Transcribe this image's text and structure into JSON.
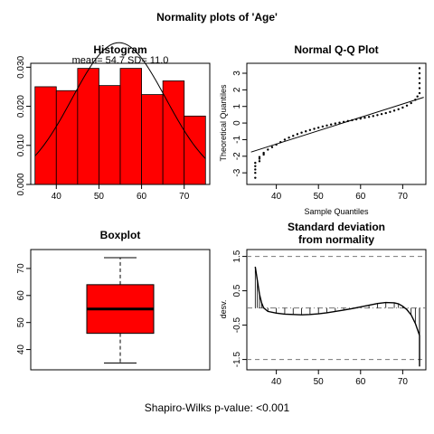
{
  "figure_title": "Normality plots of 'Age'",
  "footer": "Shapiro-Wilks p-value: <0.001",
  "colors": {
    "fill": "#ff0000",
    "edge": "#000000",
    "ref_line": "#777777"
  },
  "chart_data": [
    {
      "type": "bar",
      "title": "Histogram",
      "annotation": "mean= 54.7  SD= 11.0",
      "xlabel": "",
      "ylabel": "",
      "bin_edges": [
        35,
        40,
        45,
        50,
        55,
        60,
        65,
        70,
        75
      ],
      "values": [
        0.025,
        0.024,
        0.0297,
        0.0253,
        0.0297,
        0.023,
        0.0265,
        0.0175
      ],
      "normal_curve": {
        "mean": 54.7,
        "sd": 11.0
      },
      "xlim": [
        34,
        76
      ],
      "ylim": [
        0,
        0.031
      ],
      "x_ticks": [
        "40",
        "50",
        "60",
        "70"
      ],
      "y_ticks": [
        "0.000",
        "0.010",
        "0.020",
        "0.030"
      ]
    },
    {
      "type": "scatter",
      "title": "Normal Q-Q Plot",
      "xlabel": "Sample Quantiles",
      "ylabel": "Theoretical Quantiles",
      "points": [
        [
          35,
          -3.3
        ],
        [
          35,
          -3.0
        ],
        [
          35,
          -2.8
        ],
        [
          35,
          -2.6
        ],
        [
          35,
          -2.4
        ],
        [
          36,
          -2.3
        ],
        [
          36,
          -2.15
        ],
        [
          36,
          -2.05
        ],
        [
          37,
          -1.9
        ],
        [
          37,
          -1.8
        ],
        [
          38,
          -1.6
        ],
        [
          39,
          -1.45
        ],
        [
          40,
          -1.3
        ],
        [
          41,
          -1.15
        ],
        [
          42,
          -1.0
        ],
        [
          43,
          -0.88
        ],
        [
          44,
          -0.77
        ],
        [
          45,
          -0.67
        ],
        [
          46,
          -0.58
        ],
        [
          47,
          -0.5
        ],
        [
          48,
          -0.42
        ],
        [
          49,
          -0.35
        ],
        [
          50,
          -0.28
        ],
        [
          51,
          -0.21
        ],
        [
          52,
          -0.15
        ],
        [
          53,
          -0.09
        ],
        [
          54,
          -0.03
        ],
        [
          55,
          0.02
        ],
        [
          56,
          0.07
        ],
        [
          57,
          0.12
        ],
        [
          58,
          0.17
        ],
        [
          59,
          0.22
        ],
        [
          60,
          0.27
        ],
        [
          61,
          0.32
        ],
        [
          62,
          0.37
        ],
        [
          63,
          0.42
        ],
        [
          64,
          0.48
        ],
        [
          65,
          0.54
        ],
        [
          66,
          0.6
        ],
        [
          67,
          0.67
        ],
        [
          68,
          0.75
        ],
        [
          69,
          0.83
        ],
        [
          70,
          0.93
        ],
        [
          71,
          1.05
        ],
        [
          72,
          1.2
        ],
        [
          73,
          1.4
        ],
        [
          73.5,
          1.6
        ],
        [
          74,
          1.8
        ],
        [
          74,
          2.1
        ],
        [
          74,
          2.4
        ],
        [
          74,
          2.7
        ],
        [
          74,
          3.0
        ],
        [
          74,
          3.3
        ]
      ],
      "reference_line": [
        [
          34,
          -1.75
        ],
        [
          75,
          1.55
        ]
      ],
      "xlim": [
        33,
        75.5
      ],
      "ylim": [
        -3.7,
        3.6
      ],
      "x_ticks": [
        "40",
        "50",
        "60",
        "70"
      ],
      "y_ticks": [
        "-3",
        "-2",
        "-1",
        "0",
        "1",
        "2",
        "3"
      ]
    },
    {
      "type": "boxplot",
      "title": "Boxplot",
      "stats": {
        "min": 35,
        "q1": 46,
        "median": 55,
        "q3": 64,
        "max": 74
      },
      "ylim": [
        32.5,
        77
      ],
      "y_ticks": [
        "40",
        "50",
        "60",
        "70"
      ]
    },
    {
      "type": "line",
      "title": "Standard deviation",
      "subtitle": "from normality",
      "ylabel": "desv.",
      "points": [
        [
          35,
          1.2
        ],
        [
          35.5,
          0.8
        ],
        [
          36,
          0.4
        ],
        [
          36.5,
          0.15
        ],
        [
          37,
          0.0
        ],
        [
          38,
          -0.1
        ],
        [
          40,
          -0.15
        ],
        [
          42,
          -0.18
        ],
        [
          44,
          -0.19
        ],
        [
          46,
          -0.2
        ],
        [
          48,
          -0.19
        ],
        [
          50,
          -0.17
        ],
        [
          52,
          -0.14
        ],
        [
          54,
          -0.1
        ],
        [
          56,
          -0.06
        ],
        [
          58,
          -0.02
        ],
        [
          60,
          0.03
        ],
        [
          62,
          0.08
        ],
        [
          64,
          0.13
        ],
        [
          66,
          0.16
        ],
        [
          68,
          0.15
        ],
        [
          69,
          0.12
        ],
        [
          70,
          0.05
        ],
        [
          71,
          -0.05
        ],
        [
          72,
          -0.2
        ],
        [
          73,
          -0.45
        ],
        [
          74,
          -0.8
        ],
        [
          74,
          -1.2
        ],
        [
          74,
          -1.7
        ]
      ],
      "dashed_lines": [
        1.5,
        -1.5
      ],
      "dotdash_line": 0,
      "xlim": [
        33,
        75.5
      ],
      "ylim": [
        -1.8,
        1.7
      ],
      "x_ticks": [
        "40",
        "50",
        "60",
        "70"
      ],
      "y_ticks": [
        "-1.5",
        "-0.5",
        "0.5",
        "1.5"
      ]
    }
  ]
}
